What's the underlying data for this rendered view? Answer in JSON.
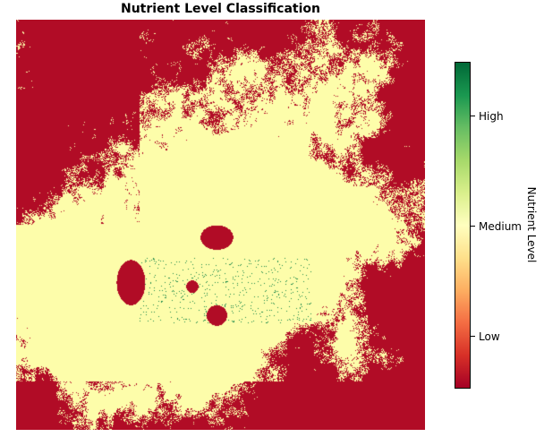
{
  "title": "Nutrient Level Classification",
  "colorbar": {
    "label": "Nutrient Level",
    "ticks": [
      "Low",
      "Medium",
      "High"
    ],
    "colormap": [
      "#a50026",
      "#d73027",
      "#f46d43",
      "#fdae61",
      "#fee08b",
      "#ffffbf",
      "#d9ef8b",
      "#a6d96a",
      "#66bd63",
      "#1a9850",
      "#006837"
    ]
  },
  "map": {
    "classes": [
      {
        "name": "Low",
        "color": "#b10c26"
      },
      {
        "name": "Medium",
        "color": "#fdfdaa"
      },
      {
        "name": "High",
        "color": "#1e8a4b"
      }
    ]
  }
}
